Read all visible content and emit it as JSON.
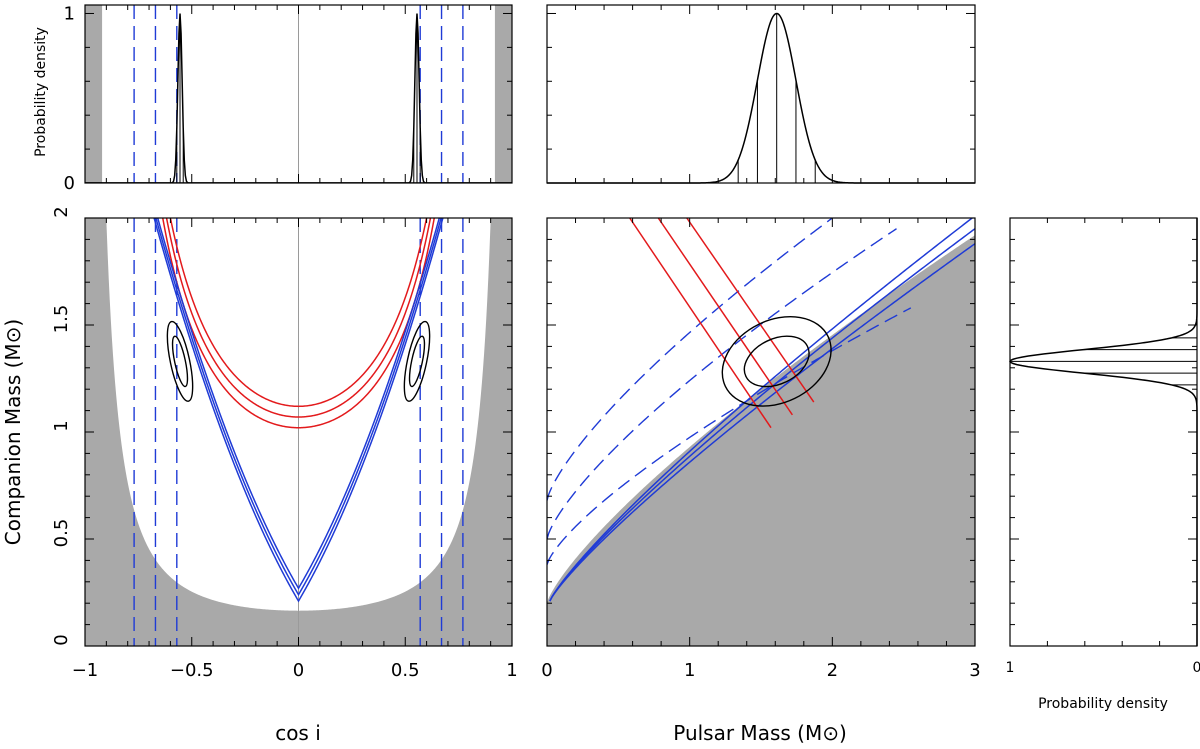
{
  "colors": {
    "red": "#e31a1c",
    "blue": "#1f3bd6",
    "gray": "#a9a9a9",
    "black": "#000000",
    "midline": "#9a9a9a"
  },
  "chart_data": [
    {
      "id": "top-left",
      "type": "line",
      "title": "",
      "ylabel": "Probability density",
      "xlim": [
        -1,
        1
      ],
      "ylim": [
        0,
        1.05
      ],
      "xticks": [
        -1,
        -0.5,
        0,
        0.5,
        1
      ],
      "yticks": [
        0,
        1
      ],
      "ytick_labels": [
        "0",
        "1"
      ],
      "excluded_regions": [
        [
          -1,
          -0.92
        ],
        [
          0.92,
          1
        ]
      ],
      "series": [
        {
          "name": "cos i posterior (negative)",
          "center": -0.555,
          "sigma": 0.01
        },
        {
          "name": "cos i posterior (positive)",
          "center": 0.555,
          "sigma": 0.01
        }
      ],
      "vertical_lines_dashed": [
        -0.77,
        -0.67,
        -0.57,
        0.57,
        0.67,
        0.77
      ],
      "vertical_lines_marker": [
        -0.57,
        -0.555,
        -0.54,
        0.54,
        0.555,
        0.57
      ]
    },
    {
      "id": "top-middle",
      "type": "line",
      "xlim": [
        0,
        3
      ],
      "ylim": [
        0,
        1.05
      ],
      "series": [
        {
          "name": "pulsar mass posterior",
          "center": 1.61,
          "sigma": 0.135
        }
      ],
      "vertical_lines_marker": [
        1.34,
        1.475,
        1.61,
        1.745,
        1.88
      ]
    },
    {
      "id": "main-left",
      "type": "line",
      "xlabel": "cos i",
      "ylabel": "Companion Mass (M⊙)",
      "xlim": [
        -1,
        1
      ],
      "ylim": [
        0,
        2
      ],
      "xticks": [
        -1,
        -0.5,
        0,
        0.5,
        1
      ],
      "xtick_labels": [
        "−1",
        "−0.5",
        "0",
        "0.5",
        "1"
      ],
      "yticks": [
        0,
        0.5,
        1,
        1.5,
        2
      ],
      "ytick_labels": [
        "0",
        "0.5",
        "1",
        "1.5",
        "2"
      ],
      "red_curves_base_mc": [
        1.02,
        1.07,
        1.12
      ],
      "blue_curves_base_mc": [
        0.21,
        0.24,
        0.27
      ],
      "blue_dashed_cosi": [
        -0.77,
        -0.67,
        -0.57,
        0.57,
        0.67,
        0.77
      ],
      "contours": [
        {
          "center": [
            -0.555,
            1.33
          ],
          "radii": [
            0.045,
            0.19
          ]
        },
        {
          "center": [
            -0.555,
            1.33
          ],
          "radii": [
            0.025,
            0.12
          ]
        },
        {
          "center": [
            0.555,
            1.33
          ],
          "radii": [
            0.045,
            0.19
          ]
        },
        {
          "center": [
            0.555,
            1.33
          ],
          "radii": [
            0.025,
            0.12
          ]
        }
      ]
    },
    {
      "id": "main-middle",
      "type": "line",
      "xlabel": "Pulsar Mass (M⊙)",
      "xlim": [
        0,
        3
      ],
      "ylim": [
        0,
        2
      ],
      "xticks": [
        0,
        1,
        2,
        3
      ],
      "xtick_labels": [
        "0",
        "1",
        "2",
        "3"
      ],
      "red_lines": [
        {
          "p1": [
            0.58,
            2.0
          ],
          "p2": [
            1.57,
            1.02
          ]
        },
        {
          "p1": [
            0.78,
            2.0
          ],
          "p2": [
            1.72,
            1.08
          ]
        },
        {
          "p1": [
            0.98,
            2.0
          ],
          "p2": [
            1.87,
            1.14
          ]
        }
      ],
      "blue_lines": [
        {
          "p1": [
            0.02,
            0.21
          ],
          "p2": [
            2.98,
            2.0
          ]
        },
        {
          "p1": [
            0.02,
            0.21
          ],
          "p2": [
            3.0,
            1.95
          ]
        },
        {
          "p1": [
            0.02,
            0.21
          ],
          "p2": [
            3.0,
            1.88
          ]
        }
      ],
      "blue_dashed_curves": [
        {
          "from": [
            0.0,
            0.68
          ],
          "to": [
            2.0,
            2.0
          ]
        },
        {
          "from": [
            0.0,
            0.5
          ],
          "to": [
            2.45,
            1.95
          ]
        },
        {
          "from": [
            0.0,
            0.38
          ],
          "to": [
            2.55,
            1.58
          ]
        }
      ],
      "contours": [
        {
          "center": [
            1.61,
            1.33
          ],
          "a": 0.4,
          "b": 0.055,
          "angle_deg": 26
        },
        {
          "center": [
            1.61,
            1.33
          ],
          "a": 0.24,
          "b": 0.03,
          "angle_deg": 26
        }
      ]
    },
    {
      "id": "right",
      "type": "line",
      "xlabel": "Probability density",
      "xlim": [
        1,
        0
      ],
      "ylim": [
        0,
        2
      ],
      "xticks": [
        1,
        0
      ],
      "xtick_labels": [
        "1",
        "0"
      ],
      "series": [
        {
          "name": "companion mass posterior",
          "center": 1.33,
          "sigma": 0.055
        }
      ],
      "horizontal_lines_marker": [
        1.22,
        1.275,
        1.33,
        1.385,
        1.44
      ]
    }
  ]
}
